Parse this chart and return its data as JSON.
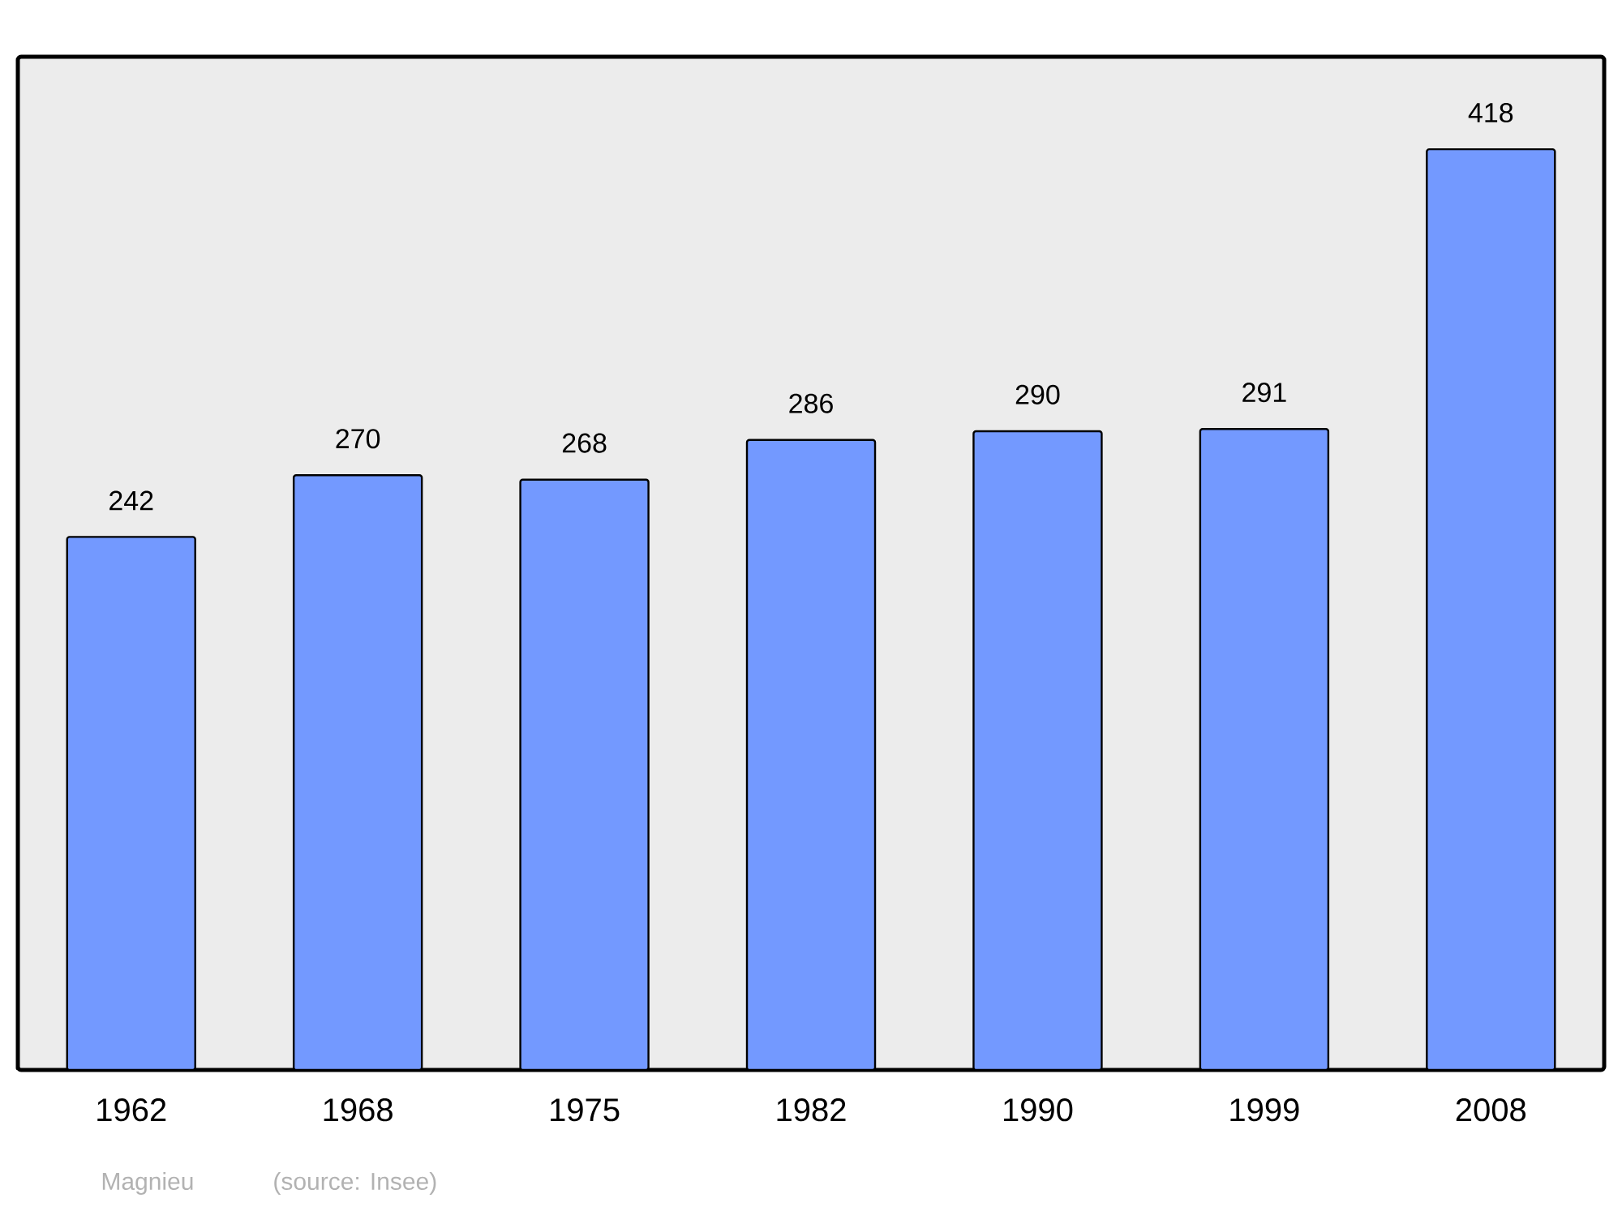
{
  "chart_data": {
    "type": "bar",
    "categories": [
      "1962",
      "1968",
      "1975",
      "1982",
      "1990",
      "1999",
      "2008"
    ],
    "values": [
      242,
      270,
      268,
      286,
      290,
      291,
      418
    ],
    "color": "#7399ff",
    "ylim": [
      0,
      460
    ],
    "data_labels": true,
    "annotations": [
      "Magnieu",
      "(source: Insee)"
    ]
  }
}
